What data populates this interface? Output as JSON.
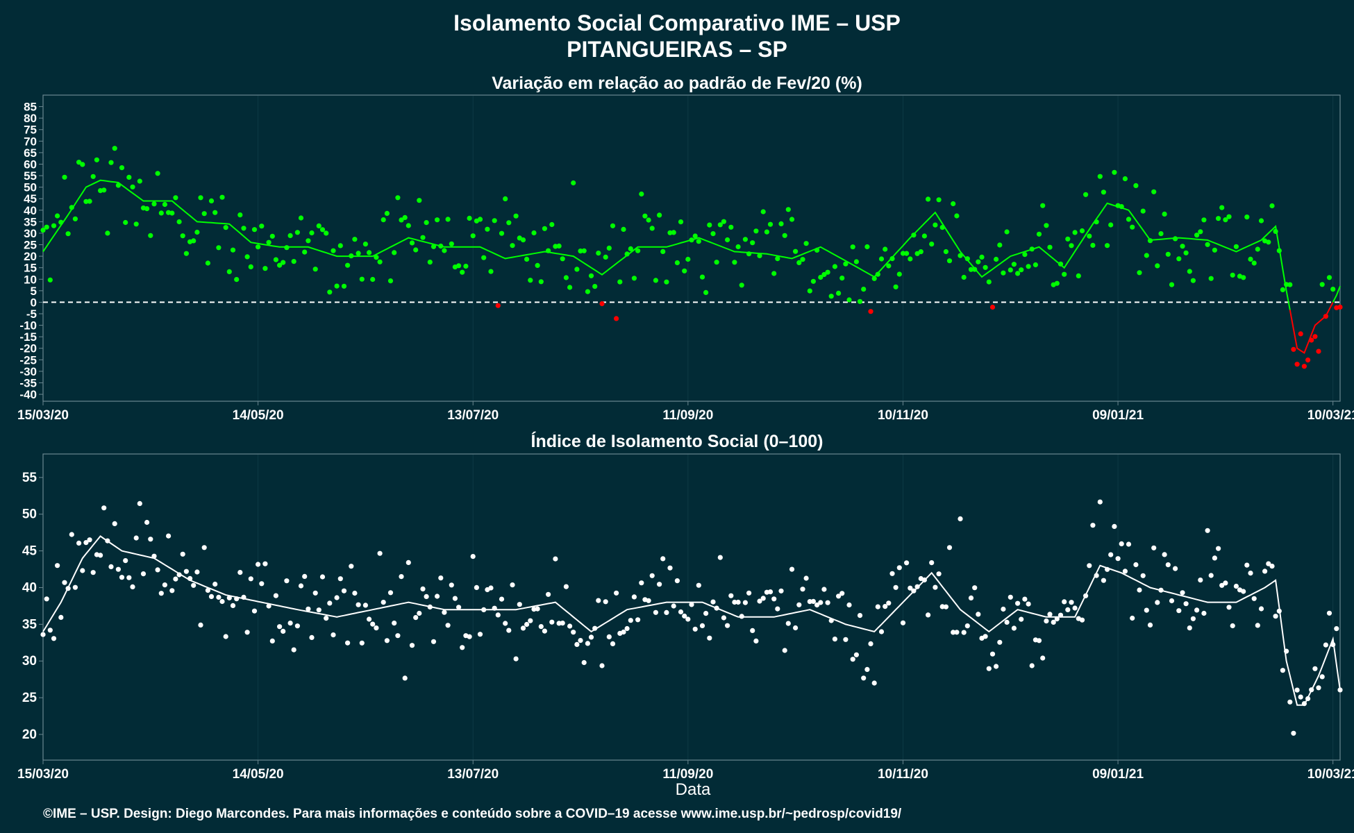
{
  "title_line1": "Isolamento Social Comparativo IME – USP",
  "title_line2": "PITANGUEIRAS – SP",
  "footer": "©IME – USP. Design: Diego Marcondes. Para mais informações e conteúdo sobre a COVID–19 acesse www.ime.usp.br/~pedrosp/covid19/",
  "xlabel": "Data",
  "colors": {
    "background": "#022b36",
    "positive": "#00ff00",
    "negative": "#ff0000",
    "index": "#ffffff",
    "grid": "#0e3a45",
    "frame": "#6b8790"
  },
  "chart_data": [
    {
      "type": "scatter",
      "title": "Variação em relação ao padrão de Fev/20 (%)",
      "x_start": "2020-03-15",
      "x_end": "2021-03-12",
      "x_tick_labels": [
        "15/03/20",
        "14/05/20",
        "13/07/20",
        "11/09/20",
        "10/11/20",
        "09/01/21",
        "10/03/21"
      ],
      "x_tick_dates": [
        "2020-03-15",
        "2020-05-14",
        "2020-07-13",
        "2020-09-11",
        "2020-11-10",
        "2021-01-09",
        "2021-03-10"
      ],
      "y_ticks": [
        -40,
        -35,
        -30,
        -25,
        -20,
        -15,
        -10,
        -5,
        0,
        5,
        10,
        15,
        20,
        25,
        30,
        35,
        40,
        45,
        50,
        55,
        60,
        65,
        70,
        75,
        80,
        85
      ],
      "ylim": [
        -43,
        90
      ],
      "reference_line": 0,
      "points_legend": "green = positive, red = negative",
      "smooth_anchors": [
        {
          "x": "2020-03-15",
          "y": 22
        },
        {
          "x": "2020-03-22",
          "y": 38
        },
        {
          "x": "2020-03-27",
          "y": 50
        },
        {
          "x": "2020-03-31",
          "y": 53
        },
        {
          "x": "2020-04-05",
          "y": 52
        },
        {
          "x": "2020-04-12",
          "y": 44
        },
        {
          "x": "2020-04-20",
          "y": 44
        },
        {
          "x": "2020-04-27",
          "y": 35
        },
        {
          "x": "2020-05-06",
          "y": 34
        },
        {
          "x": "2020-05-12",
          "y": 26
        },
        {
          "x": "2020-05-20",
          "y": 24
        },
        {
          "x": "2020-05-28",
          "y": 24
        },
        {
          "x": "2020-06-05",
          "y": 20
        },
        {
          "x": "2020-06-15",
          "y": 20
        },
        {
          "x": "2020-06-25",
          "y": 28
        },
        {
          "x": "2020-07-05",
          "y": 24
        },
        {
          "x": "2020-07-15",
          "y": 24
        },
        {
          "x": "2020-07-22",
          "y": 19
        },
        {
          "x": "2020-08-02",
          "y": 22
        },
        {
          "x": "2020-08-10",
          "y": 20
        },
        {
          "x": "2020-08-18",
          "y": 12
        },
        {
          "x": "2020-08-28",
          "y": 24
        },
        {
          "x": "2020-09-05",
          "y": 24
        },
        {
          "x": "2020-09-14",
          "y": 28
        },
        {
          "x": "2020-09-24",
          "y": 22
        },
        {
          "x": "2020-10-03",
          "y": 21
        },
        {
          "x": "2020-10-10",
          "y": 19
        },
        {
          "x": "2020-10-18",
          "y": 24
        },
        {
          "x": "2020-10-25",
          "y": 18
        },
        {
          "x": "2020-11-02",
          "y": 11
        },
        {
          "x": "2020-11-12",
          "y": 28
        },
        {
          "x": "2020-11-19",
          "y": 39
        },
        {
          "x": "2020-11-26",
          "y": 22
        },
        {
          "x": "2020-12-02",
          "y": 11
        },
        {
          "x": "2020-12-10",
          "y": 20
        },
        {
          "x": "2020-12-18",
          "y": 24
        },
        {
          "x": "2020-12-25",
          "y": 15
        },
        {
          "x": "2021-01-02",
          "y": 34
        },
        {
          "x": "2021-01-06",
          "y": 43
        },
        {
          "x": "2021-01-12",
          "y": 40
        },
        {
          "x": "2021-01-18",
          "y": 27
        },
        {
          "x": "2021-01-26",
          "y": 28
        },
        {
          "x": "2021-02-03",
          "y": 27
        },
        {
          "x": "2021-02-11",
          "y": 22
        },
        {
          "x": "2021-02-18",
          "y": 27
        },
        {
          "x": "2021-02-22",
          "y": 33
        },
        {
          "x": "2021-02-25",
          "y": 5
        },
        {
          "x": "2021-02-28",
          "y": -20
        },
        {
          "x": "2021-03-02",
          "y": -22
        },
        {
          "x": "2021-03-05",
          "y": -10
        },
        {
          "x": "2021-03-08",
          "y": -6
        },
        {
          "x": "2021-03-11",
          "y": 3
        },
        {
          "x": "2021-03-12",
          "y": 7
        }
      ]
    },
    {
      "type": "scatter",
      "title": "Índice de Isolamento Social (0–100)",
      "x_start": "2020-03-15",
      "x_end": "2021-03-12",
      "x_tick_labels": [
        "15/03/20",
        "14/05/20",
        "13/07/20",
        "11/09/20",
        "10/11/20",
        "09/01/21",
        "10/03/21"
      ],
      "x_tick_dates": [
        "2020-03-15",
        "2020-05-14",
        "2020-07-13",
        "2020-09-11",
        "2020-11-10",
        "2021-01-09",
        "2021-03-10"
      ],
      "xlabel": "Data",
      "y_ticks": [
        20,
        25,
        30,
        35,
        40,
        45,
        50,
        55
      ],
      "ylim": [
        16.5,
        58.2
      ],
      "smooth_anchors": [
        {
          "x": "2020-03-15",
          "y": 34
        },
        {
          "x": "2020-03-20",
          "y": 38
        },
        {
          "x": "2020-03-26",
          "y": 44
        },
        {
          "x": "2020-03-31",
          "y": 47
        },
        {
          "x": "2020-04-06",
          "y": 45
        },
        {
          "x": "2020-04-15",
          "y": 44
        },
        {
          "x": "2020-04-25",
          "y": 41
        },
        {
          "x": "2020-05-05",
          "y": 39
        },
        {
          "x": "2020-05-15",
          "y": 38
        },
        {
          "x": "2020-05-25",
          "y": 37
        },
        {
          "x": "2020-06-05",
          "y": 36
        },
        {
          "x": "2020-06-15",
          "y": 37
        },
        {
          "x": "2020-06-25",
          "y": 38
        },
        {
          "x": "2020-07-05",
          "y": 37
        },
        {
          "x": "2020-07-15",
          "y": 37
        },
        {
          "x": "2020-07-25",
          "y": 37
        },
        {
          "x": "2020-08-05",
          "y": 38
        },
        {
          "x": "2020-08-15",
          "y": 34
        },
        {
          "x": "2020-08-25",
          "y": 37
        },
        {
          "x": "2020-09-05",
          "y": 38
        },
        {
          "x": "2020-09-15",
          "y": 38
        },
        {
          "x": "2020-09-25",
          "y": 36
        },
        {
          "x": "2020-10-05",
          "y": 36
        },
        {
          "x": "2020-10-15",
          "y": 37
        },
        {
          "x": "2020-10-25",
          "y": 35
        },
        {
          "x": "2020-11-02",
          "y": 34
        },
        {
          "x": "2020-11-10",
          "y": 38
        },
        {
          "x": "2020-11-18",
          "y": 42
        },
        {
          "x": "2020-11-26",
          "y": 37
        },
        {
          "x": "2020-12-04",
          "y": 34
        },
        {
          "x": "2020-12-12",
          "y": 37
        },
        {
          "x": "2020-12-20",
          "y": 36
        },
        {
          "x": "2020-12-28",
          "y": 36
        },
        {
          "x": "2021-01-04",
          "y": 43
        },
        {
          "x": "2021-01-10",
          "y": 42
        },
        {
          "x": "2021-01-18",
          "y": 40
        },
        {
          "x": "2021-01-26",
          "y": 39
        },
        {
          "x": "2021-02-03",
          "y": 38
        },
        {
          "x": "2021-02-11",
          "y": 38
        },
        {
          "x": "2021-02-19",
          "y": 40
        },
        {
          "x": "2021-02-22",
          "y": 41
        },
        {
          "x": "2021-02-25",
          "y": 30
        },
        {
          "x": "2021-02-28",
          "y": 24
        },
        {
          "x": "2021-03-02",
          "y": 24
        },
        {
          "x": "2021-03-06",
          "y": 28
        },
        {
          "x": "2021-03-10",
          "y": 33
        },
        {
          "x": "2021-03-12",
          "y": 26
        }
      ]
    }
  ]
}
